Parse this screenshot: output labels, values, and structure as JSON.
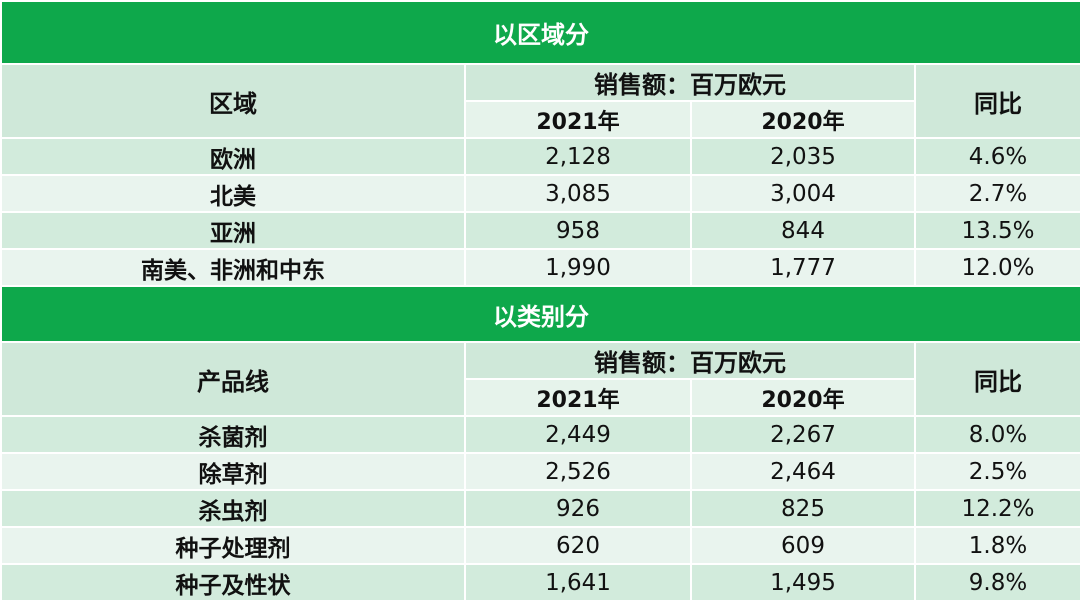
{
  "sections": [
    {
      "title": "以区域分",
      "dim_header": "区域",
      "sales_header": "销售额：百万欧元",
      "year_a": "2021年",
      "year_b": "2020年",
      "yoy_header": "同比",
      "rows": [
        {
          "name": "欧洲",
          "a": "2,128",
          "b": "2,035",
          "yoy": "4.6%"
        },
        {
          "name": "北美",
          "a": "3,085",
          "b": "3,004",
          "yoy": "2.7%"
        },
        {
          "name": "亚洲",
          "a": "958",
          "b": "844",
          "yoy": "13.5%"
        },
        {
          "name": "南美、非洲和中东",
          "a": "1,990",
          "b": "1,777",
          "yoy": "12.0%"
        }
      ]
    },
    {
      "title": "以类别分",
      "dim_header": "产品线",
      "sales_header": "销售额：百万欧元",
      "year_a": "2021年",
      "year_b": "2020年",
      "yoy_header": "同比",
      "rows": [
        {
          "name": "杀菌剂",
          "a": "2,449",
          "b": "2,267",
          "yoy": "8.0%"
        },
        {
          "name": "除草剂",
          "a": "2,526",
          "b": "2,464",
          "yoy": "2.5%"
        },
        {
          "name": "杀虫剂",
          "a": "926",
          "b": "825",
          "yoy": "12.2%"
        },
        {
          "name": "种子处理剂",
          "a": "620",
          "b": "609",
          "yoy": "1.8%"
        },
        {
          "name": "种子及性状",
          "a": "1,641",
          "b": "1,495",
          "yoy": "9.8%"
        }
      ]
    }
  ]
}
